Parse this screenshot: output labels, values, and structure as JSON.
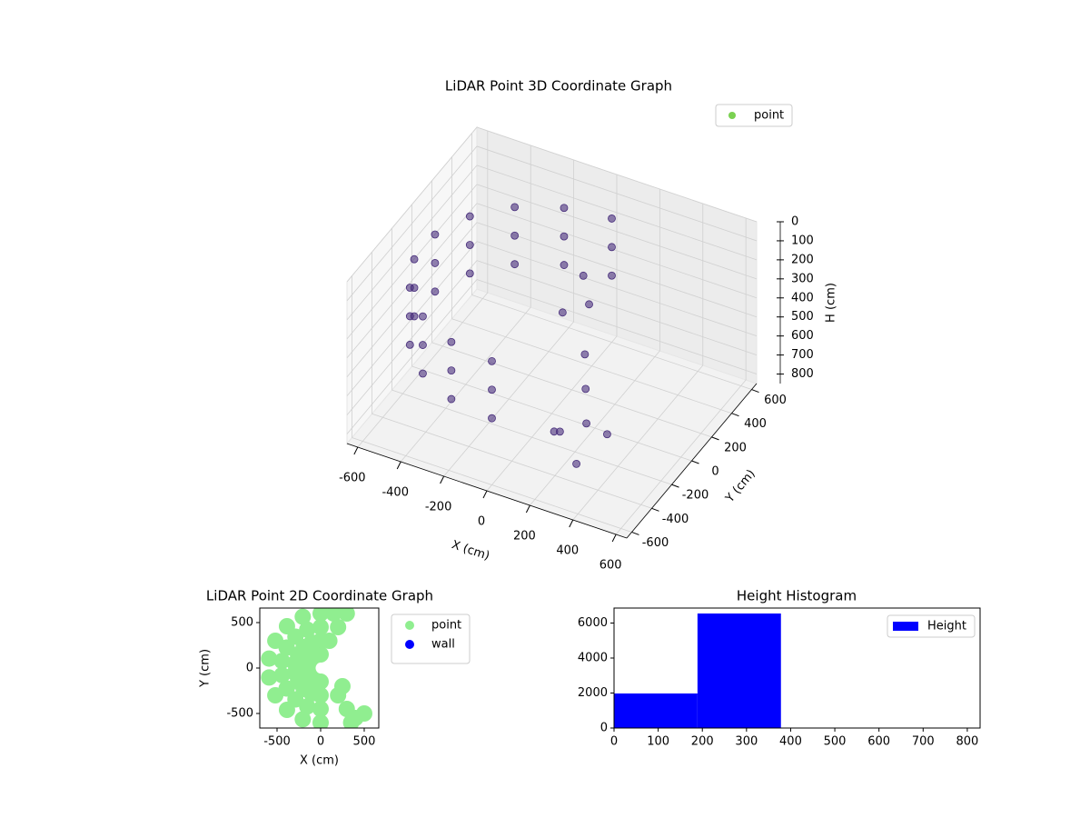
{
  "chart_data": [
    {
      "type": "scatter3d",
      "title": "LiDAR Point 3D Coordinate Graph",
      "xlabel": "X (cm)",
      "ylabel": "Y (cm)",
      "zlabel": "H (cm)",
      "xlim": [
        -650,
        650
      ],
      "ylim": [
        -650,
        650
      ],
      "zlim": [
        0,
        850
      ],
      "z_inverted": true,
      "xticks": [
        -600,
        -400,
        -200,
        0,
        200,
        400,
        600
      ],
      "yticks": [
        -600,
        -400,
        -200,
        0,
        200,
        400,
        600
      ],
      "zticks": [
        0,
        100,
        200,
        300,
        400,
        500,
        600,
        700,
        800
      ],
      "grid": true,
      "legend": "upper right",
      "series": [
        {
          "name": "point",
          "color": "#472d7b",
          "legend_color": "#7ad151",
          "x": [
            0,
            -205,
            -386,
            -520,
            -591,
            -591,
            -520,
            -386,
            -205,
            0,
            0,
            -205,
            -386,
            -520,
            -591,
            -591,
            -520,
            -386,
            -205,
            0,
            0,
            -205,
            -386,
            -520,
            -591,
            -591,
            -520,
            -386,
            -205,
            0,
            100,
            150,
            50,
            200,
            250,
            300,
            200,
            350,
            300,
            150
          ],
          "y": [
            600,
            564,
            460,
            300,
            104,
            -104,
            -300,
            -460,
            -564,
            -600,
            600,
            564,
            460,
            300,
            104,
            -104,
            -300,
            -460,
            -564,
            -600,
            600,
            564,
            460,
            300,
            104,
            -104,
            -300,
            -460,
            -564,
            -600,
            100,
            50,
            0,
            -100,
            -200,
            -300,
            -350,
            -200,
            -400,
            -300
          ],
          "z": [
            200,
            200,
            200,
            200,
            200,
            200,
            200,
            200,
            200,
            200,
            350,
            350,
            350,
            350,
            350,
            350,
            350,
            350,
            350,
            350,
            500,
            500,
            500,
            500,
            500,
            500,
            500,
            500,
            500,
            500,
            150,
            250,
            300,
            400,
            500,
            600,
            650,
            700,
            750,
            700
          ]
        }
      ]
    },
    {
      "type": "scatter",
      "title": "LiDAR Point 2D Coordinate Graph",
      "xlabel": "X (cm)",
      "ylabel": "Y (cm)",
      "xlim": [
        -698,
        667
      ],
      "ylim": [
        -660,
        660
      ],
      "xticks": [
        -500,
        0,
        500
      ],
      "yticks": [
        -500,
        0,
        500
      ],
      "legend": "outside upper right",
      "series": [
        {
          "name": "point",
          "color": "#90ee90",
          "x": [
            0,
            -205,
            -386,
            -520,
            -591,
            -591,
            -520,
            -386,
            -205,
            0,
            0,
            -154,
            -289,
            -390,
            -443,
            -443,
            -390,
            -289,
            -154,
            0,
            0,
            -103,
            -193,
            -260,
            -295,
            -295,
            -260,
            -193,
            -103,
            0,
            0,
            -51,
            -96,
            -130,
            -148,
            -148,
            -130,
            -96,
            -51,
            0,
            150,
            300,
            200,
            100,
            200,
            300,
            400,
            500,
            350,
            250
          ],
          "y": [
            600,
            564,
            460,
            300,
            104,
            -104,
            -300,
            -460,
            -564,
            -600,
            450,
            423,
            345,
            225,
            78,
            -78,
            -225,
            -345,
            -423,
            -450,
            300,
            282,
            230,
            150,
            52,
            -52,
            -150,
            -230,
            -282,
            -300,
            150,
            141,
            115,
            75,
            26,
            -26,
            -75,
            -115,
            -141,
            -150,
            600,
            600,
            450,
            300,
            -300,
            -450,
            -550,
            -500,
            -600,
            -200
          ]
        },
        {
          "name": "wall",
          "color": "#0000ff",
          "x": [],
          "y": []
        }
      ]
    },
    {
      "type": "histogram",
      "title": "Height Histogram",
      "xlim": [
        0,
        829
      ],
      "ylim": [
        0,
        6857
      ],
      "xticks": [
        0,
        100,
        200,
        300,
        400,
        500,
        600,
        700,
        800
      ],
      "yticks": [
        0,
        2000,
        4000,
        6000
      ],
      "bins": [
        0,
        189,
        378,
        567,
        756
      ],
      "legend": "upper right",
      "series": [
        {
          "name": "Height",
          "color": "#0000ff",
          "values": [
            1974,
            6545,
            0,
            0
          ]
        }
      ]
    }
  ]
}
